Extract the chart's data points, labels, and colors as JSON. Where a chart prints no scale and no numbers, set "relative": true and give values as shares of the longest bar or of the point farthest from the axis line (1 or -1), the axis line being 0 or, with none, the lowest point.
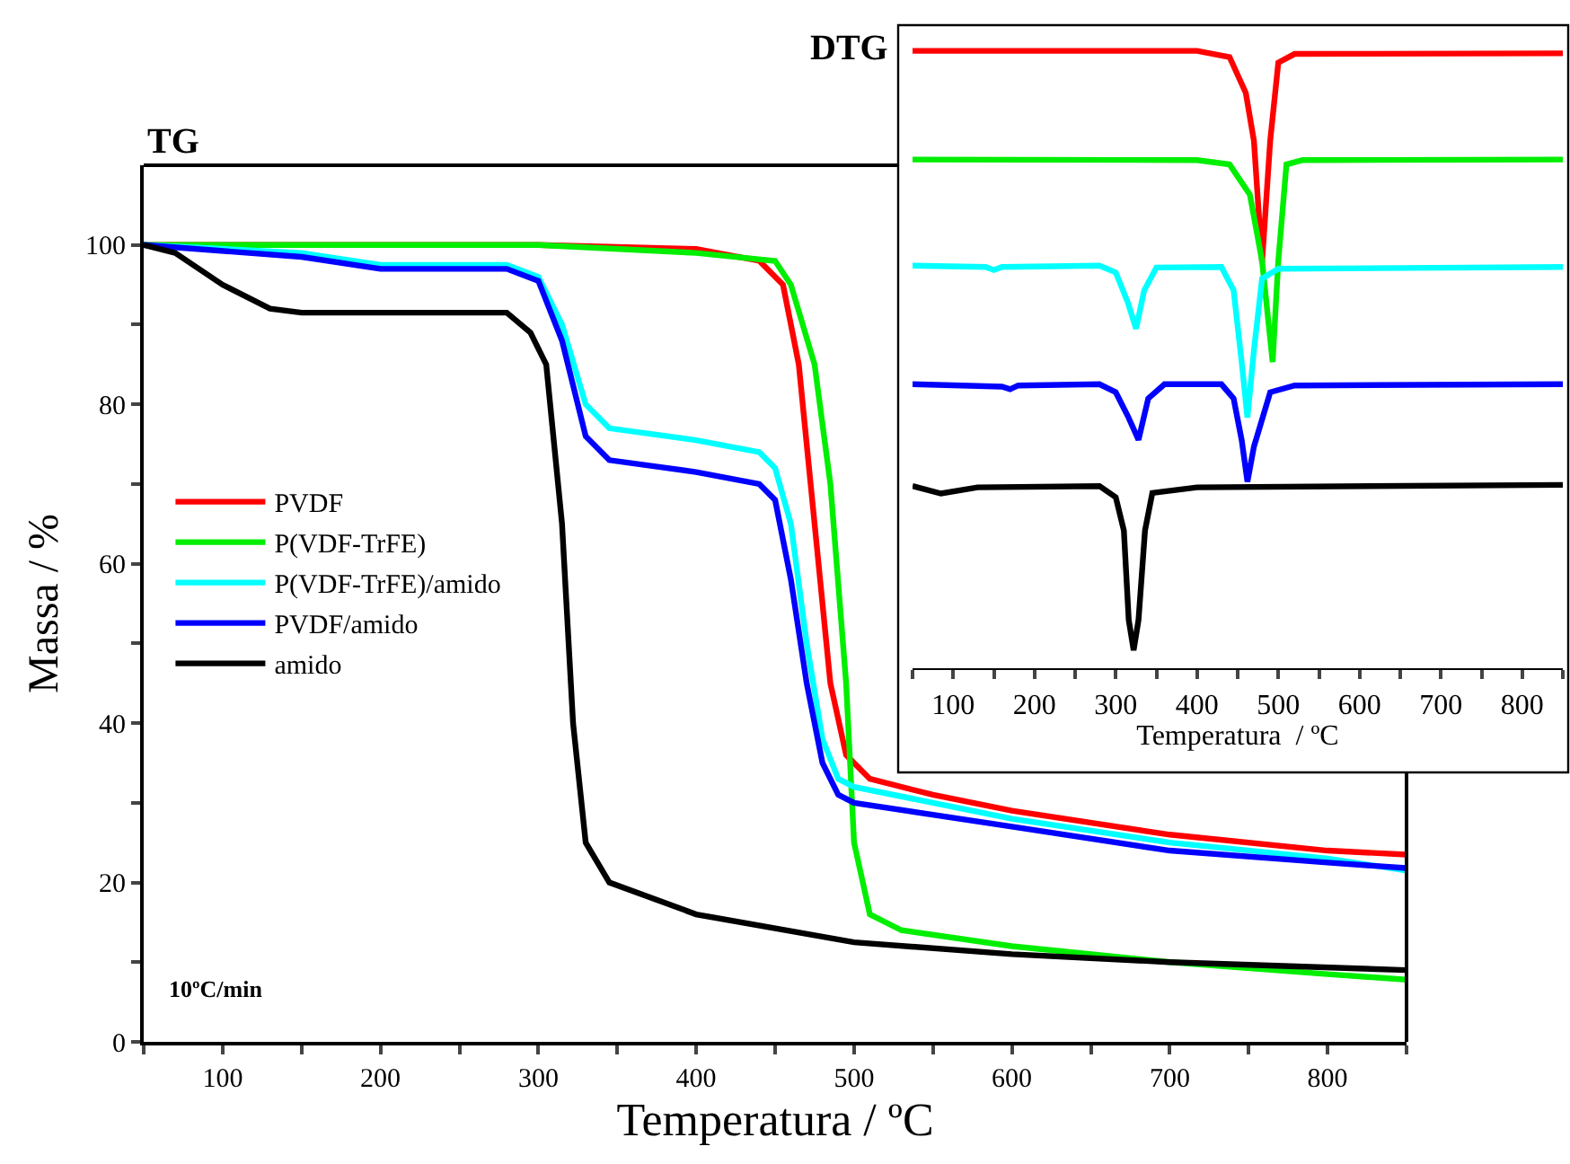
{
  "chart_data": [
    {
      "type": "line",
      "title": "TG",
      "xlabel": "Temperatura / ºC",
      "ylabel": "Massa / %",
      "xlim": [
        50,
        850
      ],
      "ylim": [
        0,
        110
      ],
      "xticks": [
        {
          "value": 50,
          "label": null
        },
        100,
        {
          "value": 150,
          "label": null
        },
        200,
        {
          "value": 250,
          "label": null
        },
        300,
        {
          "value": 350,
          "label": null
        },
        400,
        {
          "value": 450,
          "label": null
        },
        500,
        {
          "value": 550,
          "label": null
        },
        600,
        {
          "value": 650,
          "label": null
        },
        700,
        {
          "value": 750,
          "label": null
        },
        800,
        {
          "value": 850,
          "label": null
        }
      ],
      "yticks": [
        0,
        {
          "value": 10,
          "label": null
        },
        20,
        {
          "value": 30,
          "label": null
        },
        40,
        {
          "value": 50,
          "label": null
        },
        60,
        {
          "value": 70,
          "label": null
        },
        80,
        {
          "value": 90,
          "label": null
        },
        100
      ],
      "grid": false,
      "legend": "left",
      "marker": "none",
      "line_style": "solid",
      "annotations": [
        "10ºC/min"
      ],
      "series": [
        {
          "name": "PVDF",
          "color": "#ff0000",
          "x": [
            50,
            300,
            400,
            440,
            455,
            465,
            475,
            485,
            495,
            510,
            550,
            600,
            700,
            800,
            850
          ],
          "values": [
            100,
            100,
            99.5,
            98,
            95,
            85,
            65,
            45,
            36,
            33,
            31,
            29,
            26,
            24,
            23.5
          ]
        },
        {
          "name": "P(VDF-TrFE)",
          "color": "#00ee00",
          "x": [
            50,
            300,
            400,
            450,
            460,
            475,
            485,
            495,
            500,
            510,
            530,
            600,
            700,
            800,
            850
          ],
          "values": [
            100,
            100,
            99,
            98,
            95,
            85,
            70,
            45,
            25,
            16,
            14,
            12,
            10,
            8.5,
            7.8
          ]
        },
        {
          "name": "P(VDF-TrFE)/amido",
          "color": "#00ffff",
          "x": [
            50,
            150,
            200,
            280,
            300,
            315,
            330,
            345,
            400,
            440,
            450,
            460,
            470,
            480,
            490,
            500,
            600,
            700,
            800,
            850
          ],
          "values": [
            100,
            99,
            97.5,
            97.5,
            96,
            90,
            80,
            77,
            75.5,
            74,
            72,
            65,
            50,
            38,
            33,
            32,
            28,
            25,
            23,
            21.5
          ]
        },
        {
          "name": "PVDF/amido",
          "color": "#0000ff",
          "x": [
            50,
            150,
            200,
            280,
            300,
            315,
            330,
            345,
            400,
            440,
            450,
            460,
            470,
            480,
            490,
            500,
            600,
            700,
            800,
            850
          ],
          "values": [
            100,
            98.5,
            97,
            97,
            95.5,
            88,
            76,
            73,
            71.5,
            70,
            68,
            58,
            45,
            35,
            31,
            30,
            27,
            24,
            22.5,
            21.8
          ]
        },
        {
          "name": "amido",
          "color": "#000000",
          "x": [
            50,
            70,
            100,
            130,
            150,
            280,
            295,
            305,
            315,
            322,
            330,
            345,
            400,
            500,
            600,
            700,
            850
          ],
          "values": [
            100,
            99,
            95,
            92,
            91.5,
            91.5,
            89,
            85,
            65,
            40,
            25,
            20,
            16,
            12.5,
            11,
            10,
            9
          ]
        }
      ]
    },
    {
      "type": "line",
      "title": "DTG",
      "xlabel": "Temperatura  / ºC",
      "xlim": [
        50,
        850
      ],
      "relative": true,
      "tick_labels": "x",
      "xticks": [
        {
          "value": 50,
          "label": null
        },
        100,
        {
          "value": 150,
          "label": null
        },
        200,
        {
          "value": 250,
          "label": null
        },
        300,
        {
          "value": 350,
          "label": null
        },
        400,
        {
          "value": 450,
          "label": null
        },
        500,
        {
          "value": 550,
          "label": null
        },
        600,
        {
          "value": 650,
          "label": null
        },
        700,
        {
          "value": 750,
          "label": null
        },
        800,
        {
          "value": 850,
          "label": null
        }
      ],
      "grid": false,
      "legend": false,
      "marker": "none",
      "line_style": "solid",
      "series": [
        {
          "color": "#ff0000",
          "x": [
            50,
            400,
            440,
            460,
            470,
            480,
            490,
            500,
            520,
            850
          ],
          "values": [
            1.0,
            1.0,
            0.99,
            0.932,
            0.854,
            0.657,
            0.854,
            0.981,
            0.995,
            0.996
          ]
        },
        {
          "color": "#00ee00",
          "x": [
            50,
            400,
            440,
            465,
            480,
            493,
            500,
            510,
            530,
            850
          ],
          "values": [
            0.824,
            0.823,
            0.816,
            0.767,
            0.66,
            0.496,
            0.66,
            0.816,
            0.823,
            0.824
          ]
        },
        {
          "color": "#00ffff",
          "x": [
            50,
            140,
            150,
            160,
            280,
            300,
            315,
            325,
            335,
            350,
            430,
            445,
            455,
            462,
            470,
            480,
            500,
            850
          ],
          "values": [
            0.652,
            0.65,
            0.645,
            0.65,
            0.652,
            0.641,
            0.592,
            0.55,
            0.612,
            0.649,
            0.65,
            0.612,
            0.495,
            0.406,
            0.515,
            0.631,
            0.647,
            0.65
          ]
        },
        {
          "color": "#0000ff",
          "x": [
            50,
            160,
            170,
            180,
            280,
            300,
            315,
            328,
            340,
            360,
            430,
            445,
            455,
            462,
            470,
            490,
            520,
            850
          ],
          "values": [
            0.46,
            0.456,
            0.452,
            0.458,
            0.46,
            0.447,
            0.408,
            0.37,
            0.437,
            0.46,
            0.46,
            0.437,
            0.369,
            0.302,
            0.359,
            0.447,
            0.458,
            0.46
          ]
        },
        {
          "color": "#000000",
          "x": [
            50,
            85,
            130,
            280,
            300,
            310,
            316,
            322,
            328,
            336,
            345,
            400,
            850
          ],
          "values": [
            0.295,
            0.283,
            0.293,
            0.295,
            0.277,
            0.223,
            0.078,
            0.029,
            0.078,
            0.223,
            0.284,
            0.293,
            0.297
          ]
        }
      ]
    }
  ]
}
